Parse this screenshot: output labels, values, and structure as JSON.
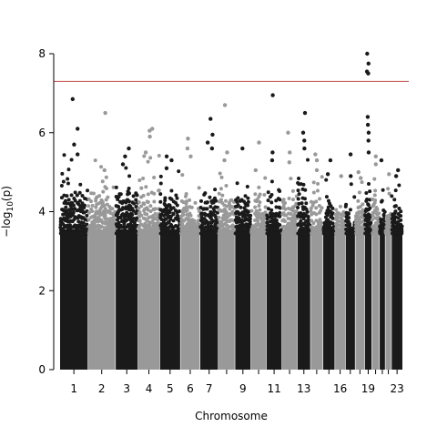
{
  "chart_data": {
    "type": "scatter",
    "xlabel": "Chromosome",
    "ylabel": "−log",
    "ylabel_sub": "10",
    "ylabel_rest": "(p)",
    "ylim": [
      0,
      8
    ],
    "yticks": [
      0,
      2,
      4,
      6,
      8
    ],
    "threshold": 7.3,
    "colors": {
      "odd": "#1a1a1a",
      "even": "#999999",
      "threshold": "#c0504d"
    },
    "chromosomes": [
      {
        "id": "1",
        "label": "1",
        "size": 248,
        "top": 5.3,
        "peaks": [
          6.85,
          6.1,
          5.7,
          5.45
        ]
      },
      {
        "id": "2",
        "label": "2",
        "size": 242,
        "top": 5.2,
        "peaks": [
          6.5,
          5.05
        ]
      },
      {
        "id": "3",
        "label": "3",
        "size": 198,
        "top": 5.0,
        "peaks": [
          5.6,
          5.4,
          5.2
        ]
      },
      {
        "id": "4",
        "label": "4",
        "size": 190,
        "top": 5.2,
        "peaks": [
          6.1,
          6.05,
          5.9,
          5.5
        ]
      },
      {
        "id": "5",
        "label": "5",
        "size": 181,
        "top": 5.0,
        "peaks": [
          5.4,
          5.3,
          5.1
        ]
      },
      {
        "id": "6",
        "label": "6",
        "size": 171,
        "top": 4.9,
        "peaks": [
          5.85,
          5.6,
          5.4
        ]
      },
      {
        "id": "7",
        "label": "7",
        "size": 159,
        "top": 4.8,
        "peaks": [
          6.35,
          5.95,
          5.75,
          5.6
        ]
      },
      {
        "id": "8",
        "label": "",
        "size": 145,
        "top": 4.9,
        "peaks": [
          6.7,
          5.5,
          5.3
        ]
      },
      {
        "id": "9",
        "label": "9",
        "size": 138,
        "top": 4.7,
        "peaks": [
          5.6
        ]
      },
      {
        "id": "10",
        "label": "",
        "size": 134,
        "top": 4.8,
        "peaks": [
          5.75,
          5.05
        ]
      },
      {
        "id": "11",
        "label": "11",
        "size": 135,
        "top": 5.0,
        "peaks": [
          6.95,
          5.5,
          5.3
        ]
      },
      {
        "id": "12",
        "label": "",
        "size": 133,
        "top": 5.0,
        "peaks": [
          6.0,
          5.5,
          5.25
        ]
      },
      {
        "id": "13",
        "label": "13",
        "size": 114,
        "top": 5.2,
        "peaks": [
          6.5,
          6.0,
          5.8,
          5.6
        ]
      },
      {
        "id": "14",
        "label": "",
        "size": 107,
        "top": 4.8,
        "peaks": [
          5.45,
          5.3,
          5.05
        ]
      },
      {
        "id": "15",
        "label": "",
        "size": 102,
        "top": 4.6,
        "peaks": [
          5.3,
          4.95
        ]
      },
      {
        "id": "16",
        "label": "16",
        "size": 90,
        "top": 4.4,
        "peaks": [
          4.9
        ]
      },
      {
        "id": "17",
        "label": "",
        "size": 83,
        "top": 4.6,
        "peaks": [
          5.45,
          4.9
        ]
      },
      {
        "id": "18",
        "label": "",
        "size": 80,
        "top": 4.6,
        "peaks": [
          5.0,
          4.85
        ]
      },
      {
        "id": "19",
        "label": "19",
        "size": 59,
        "top": 4.9,
        "peaks": [
          8.0,
          7.75,
          7.55,
          7.5,
          6.4,
          6.2,
          6.0,
          5.8,
          5.5
        ]
      },
      {
        "id": "20",
        "label": "",
        "size": 64,
        "top": 4.6,
        "peaks": [
          5.4,
          5.2
        ]
      },
      {
        "id": "21",
        "label": "",
        "size": 47,
        "top": 4.4,
        "peaks": [
          5.3
        ]
      },
      {
        "id": "22",
        "label": "",
        "size": 51,
        "top": 4.5,
        "peaks": [
          4.95
        ]
      },
      {
        "id": "23",
        "label": "23",
        "size": 96,
        "top": 4.6,
        "peaks": [
          5.05,
          4.9
        ]
      }
    ]
  }
}
